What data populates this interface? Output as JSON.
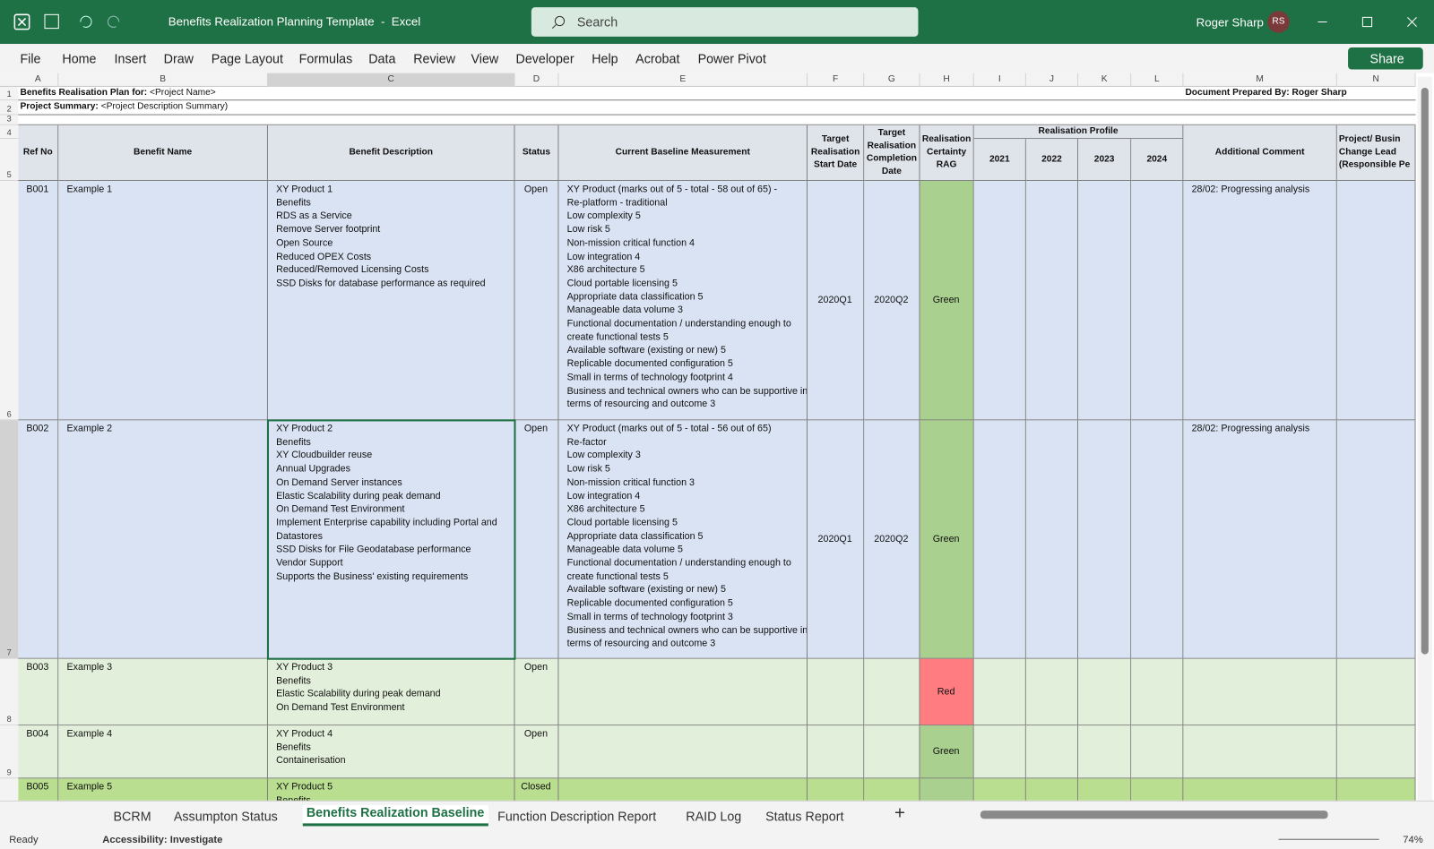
{
  "titlebar": {
    "title": "Benefits Realization Planning Template  -  Excel",
    "search": "Search",
    "user": "Roger Sharp",
    "initials": "RS"
  },
  "menu": {
    "items": [
      "File",
      "Home",
      "Insert",
      "Draw",
      "Page Layout",
      "Formulas",
      "Data",
      "Review",
      "View",
      "Developer",
      "Help",
      "Acrobat",
      "Power Pivot"
    ],
    "share": "Share"
  },
  "columns": [
    "A",
    "B",
    "C",
    "D",
    "E",
    "F",
    "G",
    "H",
    "I",
    "J",
    "K",
    "L",
    "M",
    "N"
  ],
  "row_numbers": [
    "1",
    "2",
    "3",
    "4",
    "5",
    "6",
    "7",
    "8",
    "9"
  ],
  "sheet": {
    "plan_label": "Benefits Realisation Plan for:",
    "plan_value": " <Project Name>",
    "prepared_by": "Document Prepared By: Roger Sharp",
    "summary_label": "Project Summary:",
    "summary_value": " <Project Description Summary)",
    "headers": [
      "Ref No",
      "Benefit Name",
      "Benefit Description",
      "Status",
      "Current Baseline Measurement",
      "Target Realisation Start Date",
      "Target Realisation Completion Date",
      "Realisation Certainty RAG"
    ],
    "profile_header": "Realisation Profile",
    "years": [
      "2021",
      "2022",
      "2023",
      "2024"
    ],
    "comment_header": "Additional Comment",
    "lead_header": [
      "Project/ Busin",
      "Change Lead",
      "(Responsible Pe"
    ],
    "rows": [
      {
        "ref": "B001",
        "name": "Example 1",
        "description": [
          "XY Product 1",
          "Benefits",
          "RDS as a Service",
          "Remove Server footprint",
          "Open Source",
          "Reduced OPEX Costs",
          "Reduced/Removed Licensing Costs",
          "SSD Disks for database performance as required"
        ],
        "status": "Open",
        "baseline": [
          "XY Product (marks out of 5 - total - 58 out of 65) -",
          "Re-platform - traditional",
          "Low complexity 5",
          "Low risk 5",
          "Non-mission critical function 4",
          "Low integration 4",
          "X86 architecture 5",
          "Cloud portable licensing 5",
          "Appropriate data classification 5",
          "Manageable data volume 3",
          "Functional documentation / understanding enough to",
          "create functional tests 5",
          "Available software (existing or new) 5",
          "Replicable documented configuration 5",
          "Small in terms of technology footprint 4",
          "Business and technical owners who can be supportive in",
          "terms of resourcing and outcome 3"
        ],
        "start": "2020Q1",
        "completion": "2020Q2",
        "rag": "Green",
        "comment": "28/02: Progressing analysis"
      },
      {
        "ref": "B002",
        "name": "Example 2",
        "description": [
          "XY Product 2",
          "Benefits",
          "XY Cloudbuilder reuse",
          "Annual Upgrades",
          "On Demand Server instances",
          "Elastic Scalability during peak demand",
          "On Demand Test Environment",
          "Implement Enterprise capability including Portal and",
          "Datastores",
          "SSD Disks for File Geodatabase performance",
          "Vendor Support",
          "Supports the Business' existing requirements"
        ],
        "status": "Open",
        "baseline": [
          "XY Product (marks out of 5 - total - 56 out of 65)",
          "Re-factor",
          "Low complexity 3",
          "Low risk 5",
          "Non-mission critical function 3",
          "Low integration 4",
          "X86 architecture 5",
          "Cloud portable licensing 5",
          "Appropriate data classification 5",
          "Manageable data volume 5",
          "Functional documentation / understanding enough to",
          "create functional tests 5",
          "Available software (existing or new) 5",
          "Replicable documented configuration 5",
          "Small in terms of technology footprint 3",
          "Business and technical owners who can be supportive in",
          "terms of resourcing and outcome 3"
        ],
        "start": "2020Q1",
        "completion": "2020Q2",
        "rag": "Green",
        "comment": "28/02: Progressing analysis"
      },
      {
        "ref": "B003",
        "name": "Example 3",
        "description": [
          "XY Product 3",
          "Benefits",
          "Elastic Scalability during peak demand",
          "On Demand Test Environment"
        ],
        "status": "Open",
        "rag": "Red"
      },
      {
        "ref": "B004",
        "name": "Example 4",
        "description": [
          "XY Product 4",
          "Benefits",
          "Containerisation"
        ],
        "status": "Open",
        "rag": "Green"
      },
      {
        "ref": "B005",
        "name": "Example 5",
        "description": [
          "XY Product 5",
          "Benefits"
        ],
        "status": "Closed"
      }
    ]
  },
  "tabs": {
    "items": [
      "BCRM",
      "Assumpton Status",
      "Benefits Realization Baseline",
      "Function Description Report",
      "RAID Log",
      "Status Report"
    ],
    "active": 2
  },
  "statusbar": {
    "ready": "Ready",
    "accessibility": "Accessibility: Investigate",
    "zoom": "74%"
  }
}
